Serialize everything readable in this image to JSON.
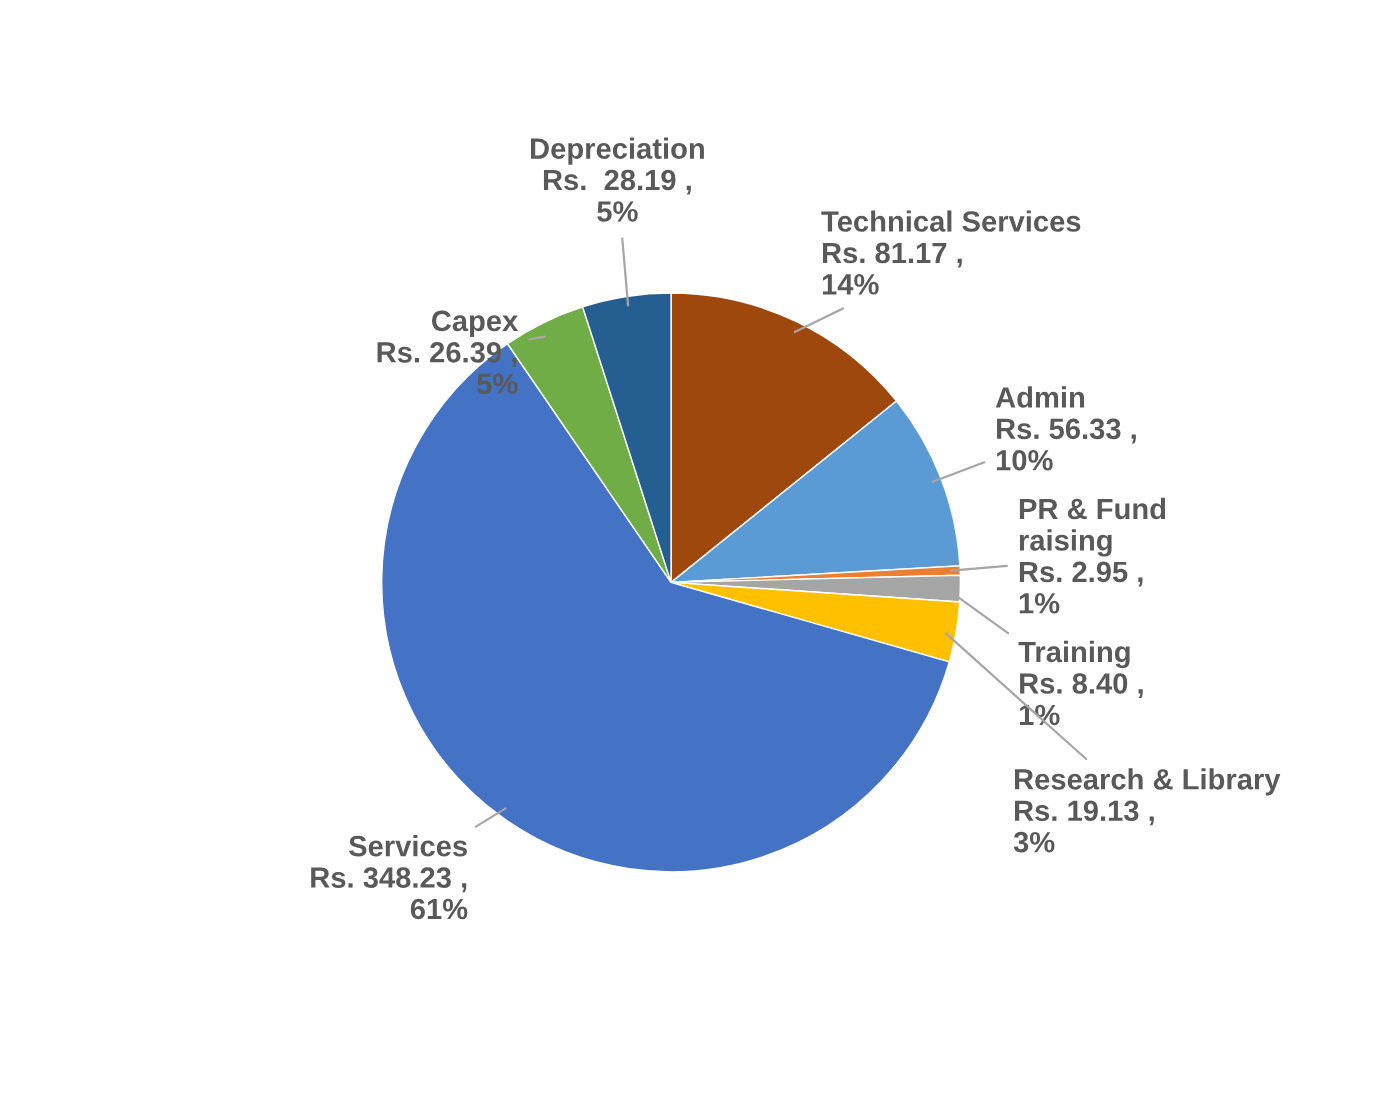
{
  "chart_data": {
    "type": "pie",
    "categories": [
      "Technical Services",
      "Admin",
      "PR & Fund\nraising",
      "Training",
      "Research & Library",
      "Services",
      "Capex",
      "Depreciation"
    ],
    "values": [
      81.17,
      56.33,
      2.95,
      8.4,
      19.13,
      348.23,
      26.39,
      28.19
    ],
    "value_labels": [
      "Rs. 81.17 ,\n14%",
      "Rs. 56.33 ,\n10%",
      "Rs. 2.95 ,\n1%",
      "Rs. 8.40 ,\n1%",
      "Rs. 19.13 ,\n3%",
      "Rs. 348.23 ,\n61%",
      "Rs. 26.39 ,\n5%",
      "Rs.  28.19 ,\n5%"
    ],
    "colors": [
      "#9e480e",
      "#5b9bd5",
      "#ed7d31",
      "#a5a5a5",
      "#ffc000",
      "#4472c4",
      "#70ad47",
      "#255e91"
    ],
    "legend": false
  }
}
